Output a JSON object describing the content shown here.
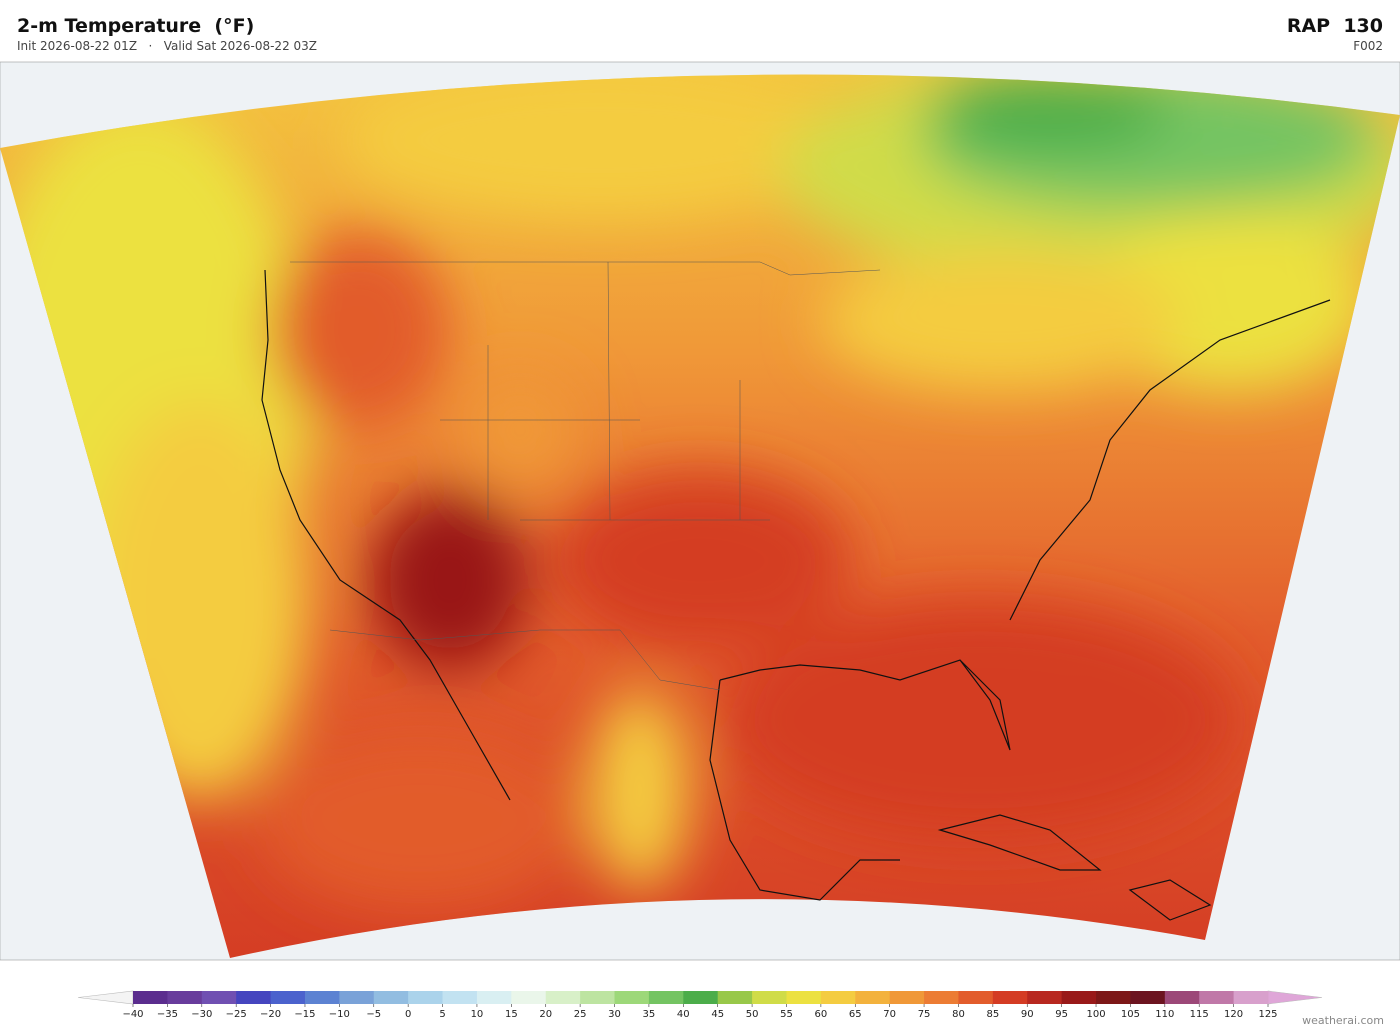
{
  "header": {
    "title": "2-m Temperature  (°F)",
    "subtitle": "Init 2026-08-22 01Z   ·   Valid Sat 2026-08-22 03Z",
    "model": "RAP  130",
    "forecast_hour": "F002"
  },
  "colorbar": {
    "ticks": [
      {
        "value": -40,
        "label": "−40"
      },
      {
        "value": -35,
        "label": "−35"
      },
      {
        "value": -30,
        "label": "−30"
      },
      {
        "value": -25,
        "label": "−25"
      },
      {
        "value": -20,
        "label": "−20"
      },
      {
        "value": -15,
        "label": "−15"
      },
      {
        "value": -10,
        "label": "−10"
      },
      {
        "value": -5,
        "label": "−5"
      },
      0,
      5,
      10,
      15,
      20,
      25,
      30,
      35,
      40,
      45,
      50,
      55,
      60,
      65,
      70,
      75,
      80,
      85,
      90,
      95,
      100,
      105,
      110,
      115,
      120,
      125
    ],
    "colors": [
      "#5b2d8e",
      "#683c9c",
      "#7050b2",
      "#4545bf",
      "#4b62cd",
      "#5c82d2",
      "#7aa2d8",
      "#92bde1",
      "#abd3eb",
      "#c2e2f1",
      "#d9eff2",
      "#eaf6ea",
      "#d8f0c8",
      "#bde4a1",
      "#9dd879",
      "#74c462",
      "#4cad4a",
      "#98c849",
      "#d0dc48",
      "#ece141",
      "#f4cc41",
      "#f3b23d",
      "#f09838",
      "#ec7c34",
      "#e25c2c",
      "#d43c24",
      "#b82820",
      "#991919",
      "#7d1818",
      "#6c1420",
      "#9c4878",
      "#c078a8",
      "#d8a0cc"
    ]
  },
  "footer": {
    "credit": "weatherai.com"
  }
}
